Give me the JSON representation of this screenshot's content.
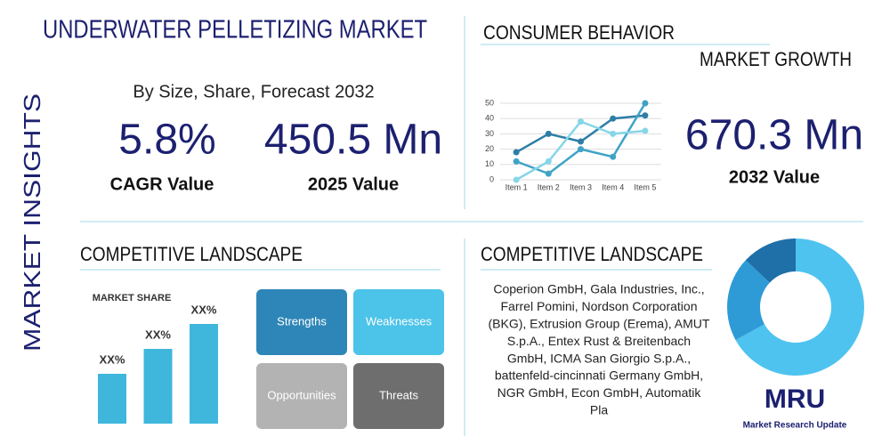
{
  "title": "UNDERWATER PELLETIZING MARKET",
  "side_label": "MARKET INSIGHTS",
  "subtitle": "By Size, Share, Forecast 2032",
  "stats": [
    {
      "value": "5.8%",
      "label": "CAGR Value"
    },
    {
      "value": "450.5 Mn",
      "label": "2025 Value"
    },
    {
      "value": "670.3 Mn",
      "label": "2032 Value"
    }
  ],
  "consumer_behavior": {
    "title": "CONSUMER BEHAVIOR",
    "subtitle": "MARKET GROWTH",
    "chart_data": {
      "type": "line",
      "categories": [
        "Item 1",
        "Item 2",
        "Item 3",
        "Item 4",
        "Item 5"
      ],
      "ylim": [
        0,
        50
      ],
      "yticks": [
        0,
        10,
        20,
        30,
        40,
        50
      ],
      "grid": true,
      "series": [
        {
          "color": "#2d7ea6",
          "values": [
            18,
            30,
            25,
            40,
            42
          ]
        },
        {
          "color": "#3fa3c6",
          "values": [
            12,
            4,
            20,
            15,
            50
          ]
        },
        {
          "color": "#86d6e8",
          "values": [
            0,
            12,
            38,
            30,
            32
          ]
        }
      ]
    }
  },
  "competitive_landscape": {
    "title": "COMPETITIVE LANDSCAPE",
    "chart_data": {
      "type": "bar",
      "title": "MARKET SHARE",
      "values": [
        50,
        75,
        100
      ],
      "value_labels": [
        "XX%",
        "XX%",
        "XX%"
      ],
      "color": "#3fb6dc"
    },
    "swot": [
      "Strengths",
      "Weaknesses",
      "Opportunities",
      "Threats"
    ]
  },
  "companies": {
    "title": "COMPETITIVE LANDSCAPE",
    "lines": [
      "Coperion GmbH, Gala Industries, Inc.,",
      "Farrel Pomini, Nordson Corporation",
      "(BKG), Extrusion Group (Erema), AMUT",
      "S.p.A., Entex Rust & Breitenbach",
      "GmbH, ICMA San Giorgio S.p.A.,",
      "battenfeld-cincinnati Germany GmbH,",
      "NGR GmbH, Econ GmbH, Automatik",
      "Pla"
    ],
    "chart_data": {
      "type": "donut",
      "values": [
        67,
        20,
        13
      ],
      "colors": [
        "#4fc3ef",
        "#2e9bd6",
        "#1f6fa8"
      ]
    }
  },
  "logo": {
    "mark": "MRU",
    "name": "Market Research Update"
  }
}
